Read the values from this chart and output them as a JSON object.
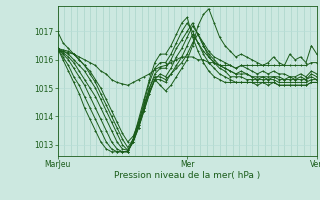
{
  "title": "",
  "xlabel": "Pression niveau de la mer( hPa )",
  "background_color": "#cce8e0",
  "plot_bg_color": "#cce8e0",
  "grid_color_v": "#aad4ca",
  "grid_color_h": "#b8ddd6",
  "line_color": "#1a5c1a",
  "marker": "+",
  "xtick_labels": [
    "MarJeu",
    "Mer",
    "Ven"
  ],
  "xtick_positions": [
    0.0,
    0.5,
    1.0
  ],
  "ylim": [
    1012.6,
    1017.9
  ],
  "yticks": [
    1013,
    1014,
    1015,
    1016,
    1017
  ],
  "n_vgrid": 40,
  "series": [
    [
      1017.0,
      1016.6,
      1016.4,
      1016.2,
      1016.0,
      1015.8,
      1015.5,
      1015.2,
      1014.8,
      1014.4,
      1014.0,
      1013.6,
      1013.2,
      1012.9,
      1013.2,
      1013.7,
      1014.3,
      1014.9,
      1015.3,
      1015.1,
      1014.9,
      1015.1,
      1015.4,
      1015.7,
      1016.0,
      1016.5,
      1017.2,
      1017.6,
      1017.8,
      1017.3,
      1016.8,
      1016.5,
      1016.3,
      1016.1,
      1016.2,
      1016.1,
      1016.0,
      1015.9,
      1015.8,
      1015.9,
      1016.1,
      1015.9,
      1015.8,
      1016.2,
      1016.0,
      1016.1,
      1015.9,
      1016.5,
      1016.2
    ],
    [
      1016.4,
      1016.35,
      1016.3,
      1016.2,
      1016.0,
      1015.8,
      1015.6,
      1015.3,
      1015.0,
      1014.6,
      1014.2,
      1013.8,
      1013.4,
      1013.1,
      1013.3,
      1013.8,
      1014.4,
      1015.0,
      1015.4,
      1015.4,
      1015.3,
      1015.5,
      1015.7,
      1015.9,
      1016.2,
      1016.6,
      1016.9,
      1016.6,
      1016.3,
      1016.1,
      1016.0,
      1015.9,
      1015.8,
      1015.7,
      1015.8,
      1015.7,
      1015.6,
      1015.5,
      1015.6,
      1015.5,
      1015.6,
      1015.5,
      1015.5,
      1015.4,
      1015.4,
      1015.5,
      1015.4,
      1015.6,
      1015.5
    ],
    [
      1016.4,
      1016.3,
      1016.2,
      1016.0,
      1015.8,
      1015.6,
      1015.3,
      1015.0,
      1014.6,
      1014.2,
      1013.8,
      1013.4,
      1013.0,
      1012.8,
      1013.1,
      1013.6,
      1014.2,
      1014.8,
      1015.3,
      1015.3,
      1015.2,
      1015.5,
      1015.8,
      1016.1,
      1016.5,
      1016.9,
      1016.6,
      1016.3,
      1016.1,
      1015.9,
      1015.8,
      1015.7,
      1015.6,
      1015.5,
      1015.6,
      1015.5,
      1015.4,
      1015.4,
      1015.4,
      1015.4,
      1015.4,
      1015.4,
      1015.3,
      1015.4,
      1015.3,
      1015.4,
      1015.3,
      1015.5,
      1015.4
    ],
    [
      1016.4,
      1016.25,
      1016.1,
      1015.9,
      1015.6,
      1015.3,
      1015.0,
      1014.7,
      1014.3,
      1013.9,
      1013.5,
      1013.1,
      1012.85,
      1012.8,
      1013.1,
      1013.6,
      1014.2,
      1014.8,
      1015.3,
      1015.5,
      1015.4,
      1015.7,
      1016.1,
      1016.4,
      1016.8,
      1017.2,
      1016.9,
      1016.5,
      1016.2,
      1016.0,
      1015.8,
      1015.7,
      1015.6,
      1015.5,
      1015.5,
      1015.5,
      1015.4,
      1015.3,
      1015.4,
      1015.3,
      1015.4,
      1015.3,
      1015.3,
      1015.3,
      1015.3,
      1015.3,
      1015.3,
      1015.4,
      1015.3
    ],
    [
      1016.4,
      1016.2,
      1016.0,
      1015.7,
      1015.4,
      1015.1,
      1014.7,
      1014.3,
      1013.9,
      1013.5,
      1013.1,
      1012.85,
      1012.75,
      1012.75,
      1013.1,
      1013.7,
      1014.3,
      1015.0,
      1015.5,
      1015.7,
      1015.7,
      1016.0,
      1016.4,
      1016.7,
      1017.0,
      1017.3,
      1016.9,
      1016.5,
      1016.1,
      1015.9,
      1015.7,
      1015.6,
      1015.4,
      1015.4,
      1015.4,
      1015.3,
      1015.3,
      1015.3,
      1015.3,
      1015.3,
      1015.3,
      1015.2,
      1015.2,
      1015.2,
      1015.2,
      1015.2,
      1015.2,
      1015.3,
      1015.3
    ],
    [
      1016.4,
      1016.1,
      1015.8,
      1015.4,
      1015.1,
      1014.7,
      1014.3,
      1013.9,
      1013.5,
      1013.1,
      1012.85,
      1012.75,
      1012.75,
      1012.75,
      1013.2,
      1013.8,
      1014.5,
      1015.2,
      1015.7,
      1015.9,
      1015.9,
      1016.2,
      1016.6,
      1017.0,
      1017.3,
      1017.0,
      1016.6,
      1016.2,
      1015.9,
      1015.7,
      1015.5,
      1015.4,
      1015.3,
      1015.2,
      1015.2,
      1015.2,
      1015.2,
      1015.2,
      1015.2,
      1015.2,
      1015.2,
      1015.1,
      1015.1,
      1015.1,
      1015.1,
      1015.1,
      1015.1,
      1015.2,
      1015.2
    ],
    [
      1016.4,
      1016.0,
      1015.6,
      1015.2,
      1014.8,
      1014.3,
      1013.9,
      1013.5,
      1013.1,
      1012.85,
      1012.75,
      1012.75,
      1012.75,
      1012.75,
      1013.2,
      1013.9,
      1014.6,
      1015.3,
      1015.9,
      1016.2,
      1016.2,
      1016.5,
      1016.9,
      1017.3,
      1017.5,
      1016.8,
      1016.3,
      1015.9,
      1015.6,
      1015.4,
      1015.3,
      1015.2,
      1015.2,
      1015.2,
      1015.2,
      1015.2,
      1015.2,
      1015.1,
      1015.2,
      1015.1,
      1015.2,
      1015.1,
      1015.1,
      1015.1,
      1015.1,
      1015.1,
      1015.1,
      1015.2,
      1015.2
    ],
    [
      1016.3,
      1016.3,
      1016.25,
      1016.2,
      1016.1,
      1016.0,
      1015.9,
      1015.8,
      1015.6,
      1015.5,
      1015.3,
      1015.2,
      1015.15,
      1015.1,
      1015.2,
      1015.3,
      1015.4,
      1015.5,
      1015.65,
      1015.75,
      1015.8,
      1015.9,
      1016.0,
      1016.1,
      1016.1,
      1016.1,
      1016.0,
      1016.0,
      1015.9,
      1015.9,
      1015.8,
      1015.8,
      1015.8,
      1015.7,
      1015.8,
      1015.8,
      1015.8,
      1015.8,
      1015.8,
      1015.8,
      1015.8,
      1015.8,
      1015.8,
      1015.8,
      1015.8,
      1015.8,
      1015.8,
      1015.9,
      1015.9
    ]
  ]
}
